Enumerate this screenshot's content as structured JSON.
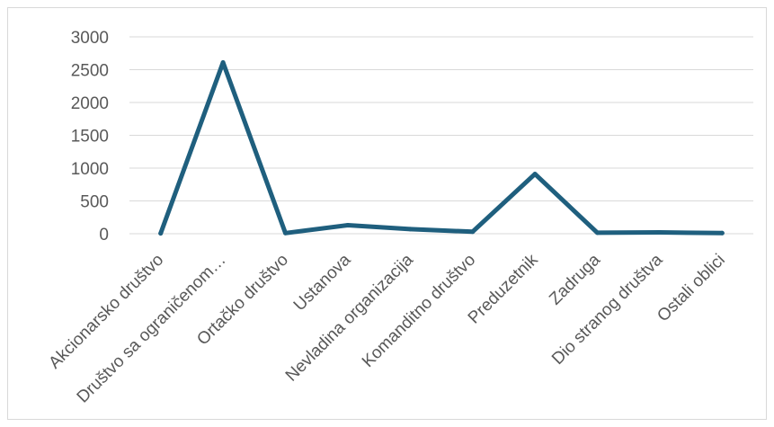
{
  "chart_data": {
    "type": "line",
    "title": "",
    "xlabel": "",
    "ylabel": "",
    "categories": [
      "Akcionarsko društvo",
      "Društvo sa ograničenom…",
      "Ortačko društvo",
      "Ustanova",
      "Nevladina organizacija",
      "Komanditno društvo",
      "Preduzetnik",
      "Zadruga",
      "Dio stranog društva",
      "Ostali oblici"
    ],
    "series": [
      {
        "values": [
          5,
          2610,
          10,
          130,
          70,
          30,
          910,
          15,
          20,
          10
        ]
      }
    ],
    "ylim": [
      0,
      3000
    ],
    "yticks": [
      0,
      500,
      1000,
      1500,
      2000,
      2500,
      3000
    ],
    "grid": true,
    "legend": "none",
    "colors": {
      "line": "#1f5f7e",
      "grid": "#d9d9d9",
      "text": "#595959"
    }
  }
}
